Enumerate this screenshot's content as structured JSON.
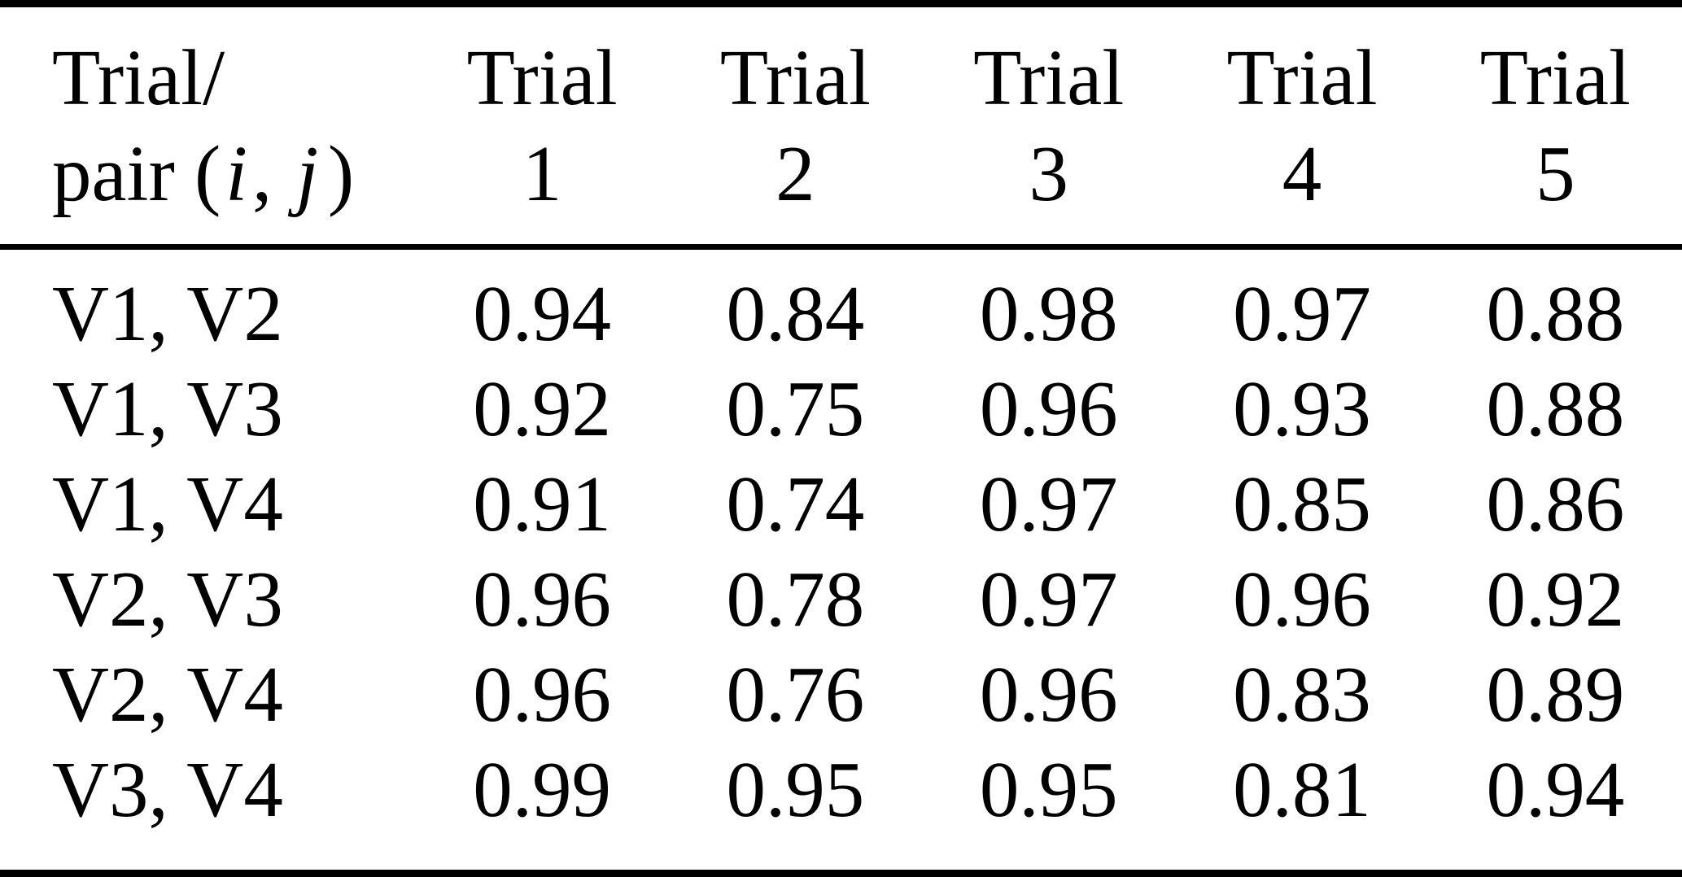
{
  "colors": {
    "background": "#ffffff",
    "text": "#000000",
    "rule": "#000000"
  },
  "table": {
    "header": {
      "row_label_line1": "Trial/",
      "row_label_line2": {
        "prefix": "pair (",
        "i": "i",
        "comma": ", ",
        "j": "j",
        "close": ")"
      },
      "columns": [
        {
          "line1": "Trial",
          "line2": "1"
        },
        {
          "line1": "Trial",
          "line2": "2"
        },
        {
          "line1": "Trial",
          "line2": "3"
        },
        {
          "line1": "Trial",
          "line2": "4"
        },
        {
          "line1": "Trial",
          "line2": "5"
        }
      ]
    },
    "rows": [
      {
        "pair": "V1, V2",
        "values": [
          "0.94",
          "0.84",
          "0.98",
          "0.97",
          "0.88"
        ]
      },
      {
        "pair": "V1, V3",
        "values": [
          "0.92",
          "0.75",
          "0.96",
          "0.93",
          "0.88"
        ]
      },
      {
        "pair": "V1, V4",
        "values": [
          "0.91",
          "0.74",
          "0.97",
          "0.85",
          "0.86"
        ]
      },
      {
        "pair": "V2, V3",
        "values": [
          "0.96",
          "0.78",
          "0.97",
          "0.96",
          "0.92"
        ]
      },
      {
        "pair": "V2, V4",
        "values": [
          "0.96",
          "0.76",
          "0.96",
          "0.83",
          "0.89"
        ]
      },
      {
        "pair": "V3, V4",
        "values": [
          "0.99",
          "0.95",
          "0.95",
          "0.81",
          "0.94"
        ]
      }
    ]
  },
  "chart_data": {
    "type": "table",
    "columns": [
      "Trial/pair (i, j)",
      "Trial 1",
      "Trial 2",
      "Trial 3",
      "Trial 4",
      "Trial 5"
    ],
    "rows": [
      [
        "V1, V2",
        0.94,
        0.84,
        0.98,
        0.97,
        0.88
      ],
      [
        "V1, V3",
        0.92,
        0.75,
        0.96,
        0.93,
        0.88
      ],
      [
        "V1, V4",
        0.91,
        0.74,
        0.97,
        0.85,
        0.86
      ],
      [
        "V2, V3",
        0.96,
        0.78,
        0.97,
        0.96,
        0.92
      ],
      [
        "V2, V4",
        0.96,
        0.76,
        0.96,
        0.83,
        0.89
      ],
      [
        "V3, V4",
        0.99,
        0.95,
        0.95,
        0.81,
        0.94
      ]
    ]
  }
}
